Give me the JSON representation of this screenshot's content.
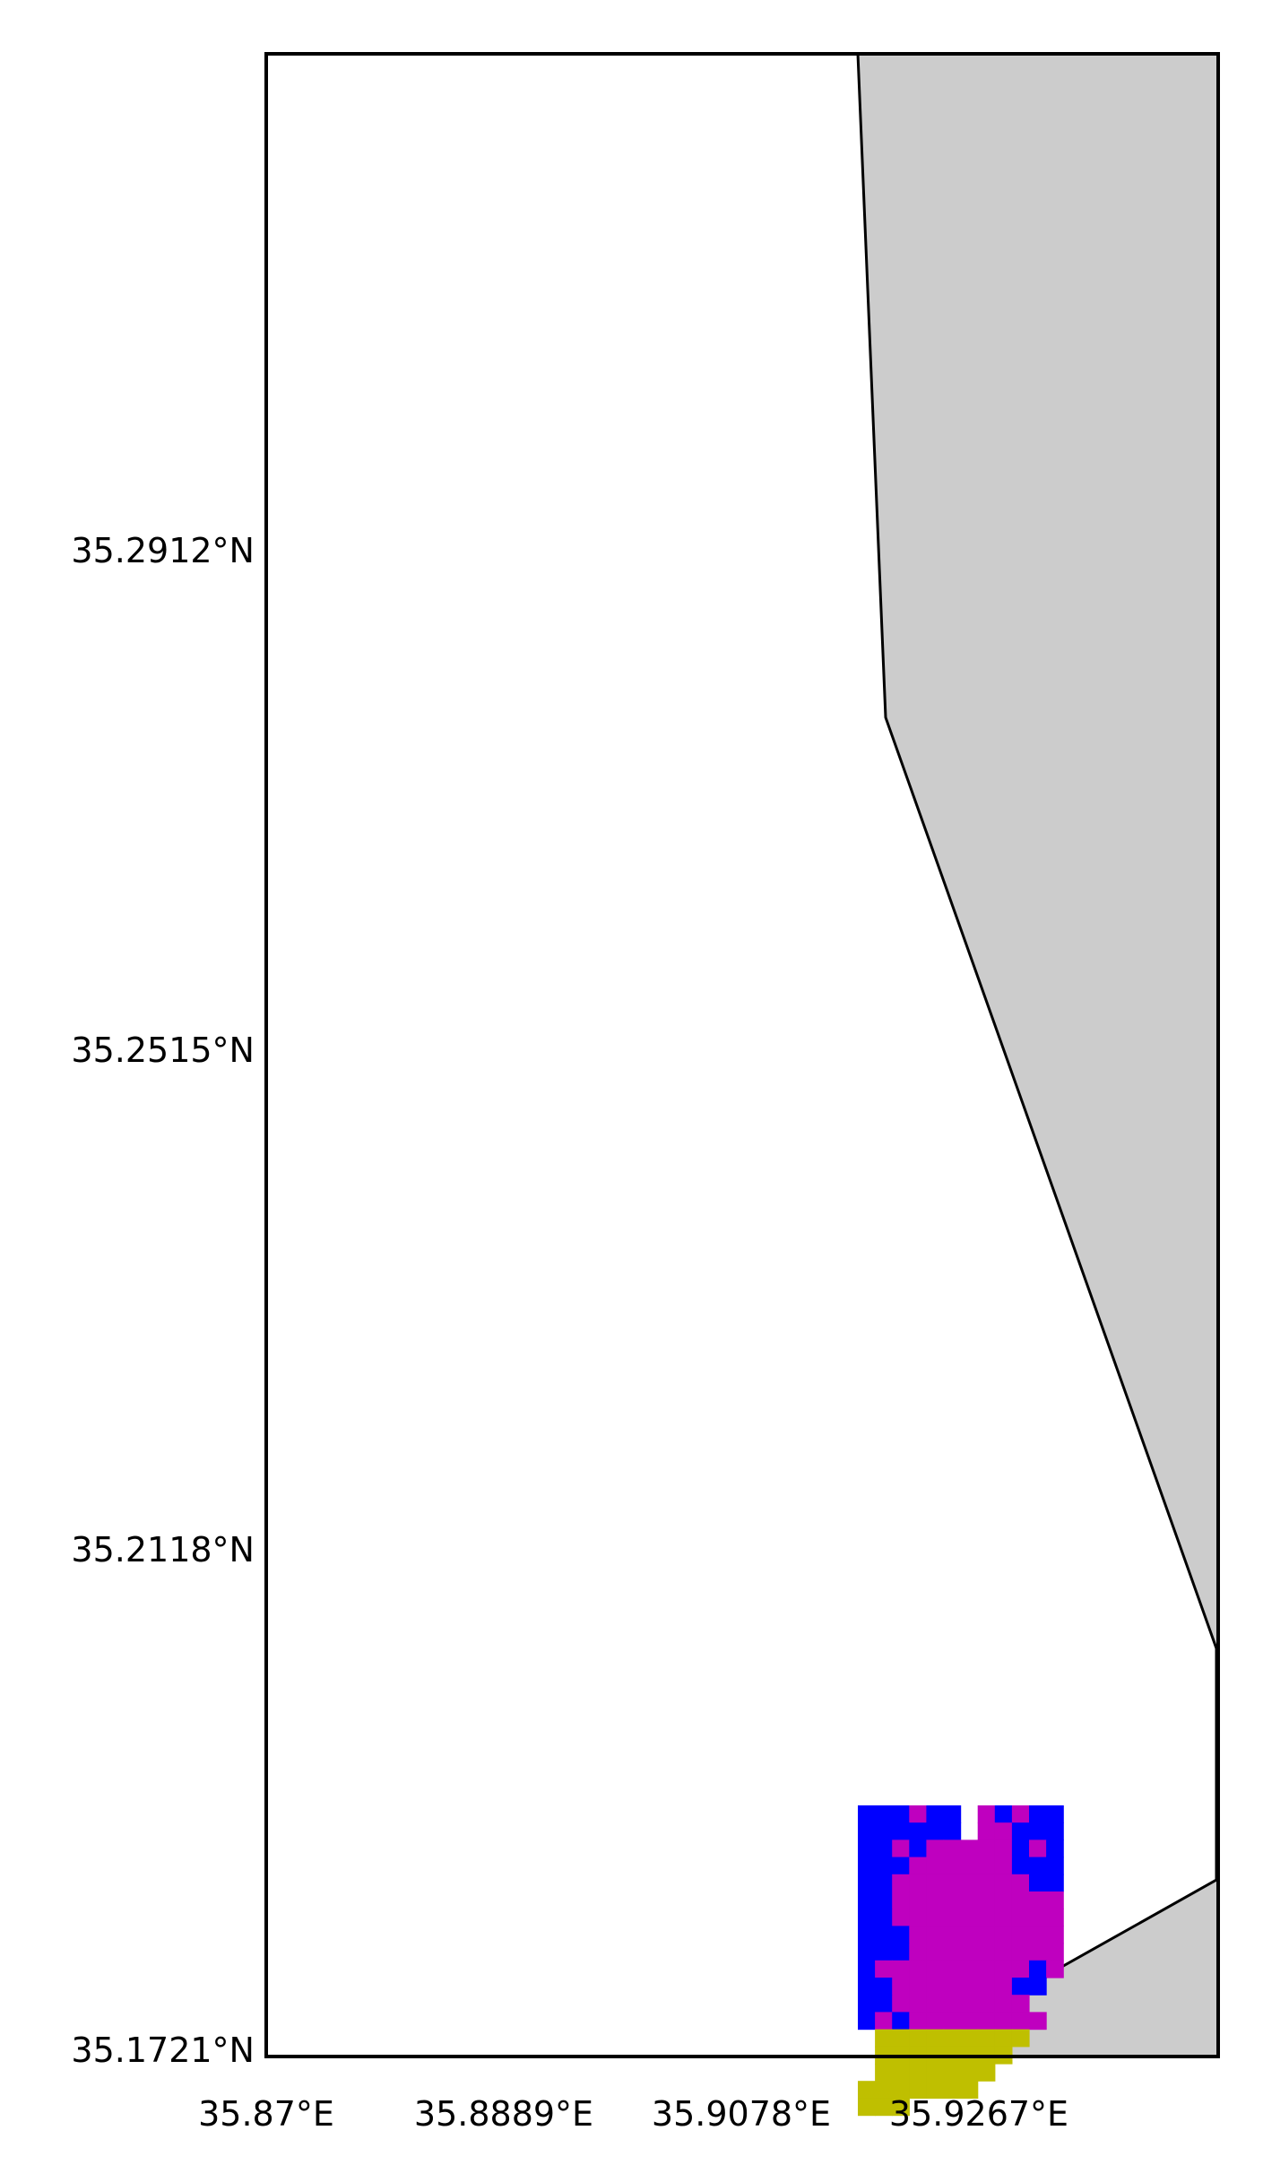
{
  "map": {
    "y_tick_labels": [
      "35.2912°N",
      "35.2515°N",
      "35.2118°N",
      "35.1721°N"
    ],
    "x_tick_labels": [
      "35.87°E",
      "35.8889°E",
      "35.9078°E",
      "35.9267°E"
    ],
    "colors": {
      "land": "#cccccc",
      "water": "#ffffff",
      "coastline": "#000000",
      "class_blue": "#0000ff",
      "class_magenta": "#bf00bf",
      "class_olive": "#bfbf00"
    }
  }
}
